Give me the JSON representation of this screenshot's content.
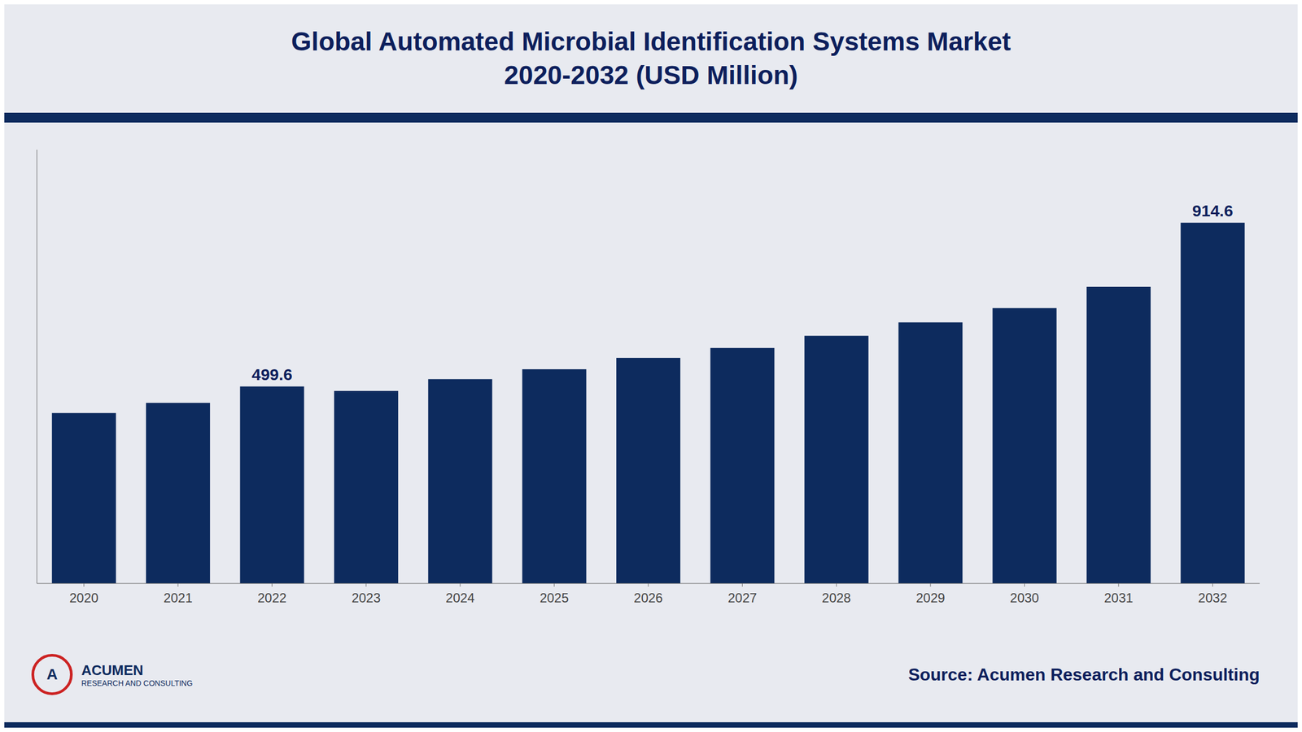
{
  "chart_data": {
    "type": "bar",
    "title": "Global Automated Microbial Identification Systems Market",
    "subtitle": "2020-2032 (USD Million)",
    "categories": [
      "2020",
      "2021",
      "2022",
      "2023",
      "2024",
      "2025",
      "2026",
      "2027",
      "2028",
      "2029",
      "2030",
      "2031",
      "2032"
    ],
    "values": [
      432.0,
      458.0,
      499.6,
      488.0,
      518.0,
      543.0,
      572.0,
      597.0,
      628.0,
      662.0,
      698.0,
      752.0,
      914.6
    ],
    "value_labels": [
      null,
      null,
      "499.6",
      null,
      null,
      null,
      null,
      null,
      null,
      null,
      null,
      null,
      "914.6"
    ],
    "color": "#0d2b5e",
    "ylim": [
      0,
      1100
    ],
    "tick_labels": "x",
    "grid": false,
    "annotations": [
      "A",
      "ACUMEN",
      "RESEARCH AND CONSULTING"
    ],
    "source": "Source: Acumen Research and Consulting"
  }
}
